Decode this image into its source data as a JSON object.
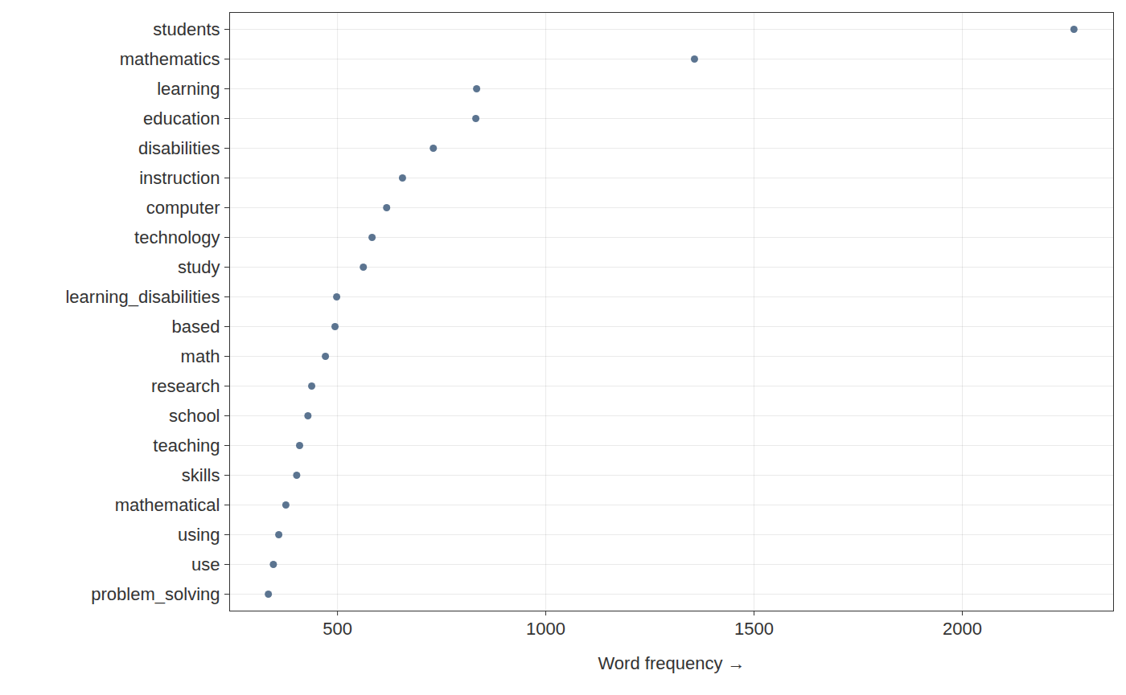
{
  "chart_data": {
    "type": "dot",
    "orientation": "horizontal",
    "categories": [
      "students",
      "mathematics",
      "learning",
      "education",
      "disabilities",
      "instruction",
      "computer",
      "technology",
      "study",
      "learning_disabilities",
      "based",
      "math",
      "research",
      "school",
      "teaching",
      "skills",
      "mathematical",
      "using",
      "use",
      "problem_solving"
    ],
    "values": [
      2268,
      1357,
      834,
      832,
      730,
      656,
      618,
      583,
      562,
      498,
      494,
      471,
      438,
      429,
      409,
      402,
      376,
      359,
      346,
      334
    ],
    "color": "#5b7490",
    "x_label": "Word frequency",
    "xlim": [
      241,
      2363
    ],
    "xticks": [
      500,
      1000,
      1500,
      2000
    ],
    "grid": true
  }
}
